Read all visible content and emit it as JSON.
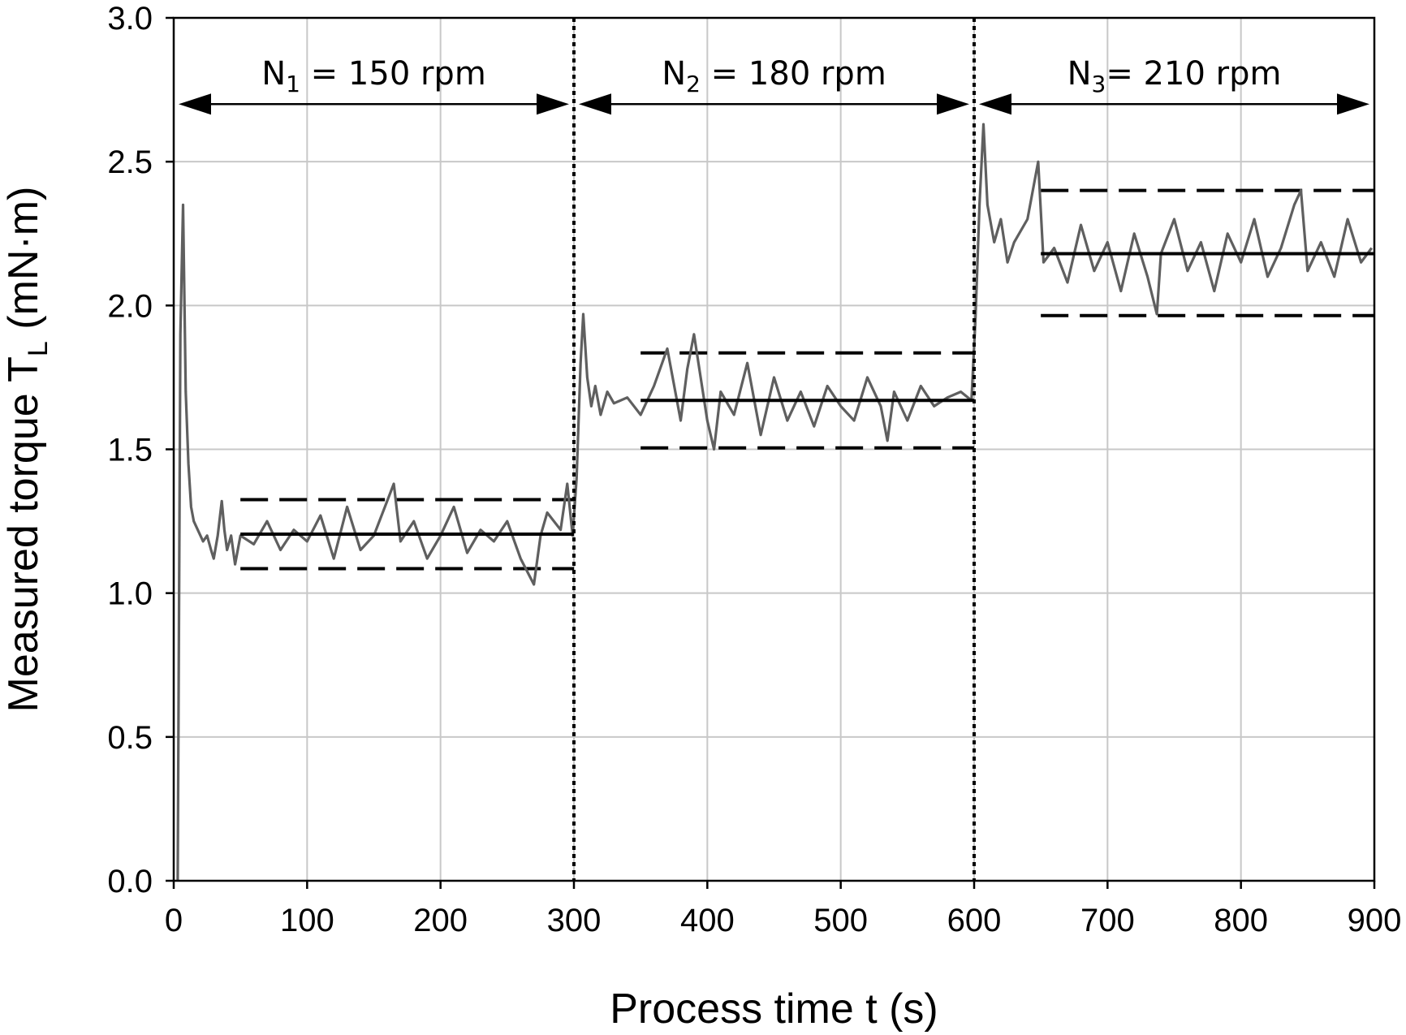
{
  "chart_data": {
    "type": "line",
    "title": "",
    "xlabel": "Process time t (s)",
    "ylabel_main": "Measured torque T",
    "ylabel_sub": "L",
    "ylabel_unit": " (mN·m)",
    "xlim": [
      0,
      900
    ],
    "ylim": [
      0,
      3.0
    ],
    "x_ticks": [
      0,
      100,
      200,
      300,
      400,
      500,
      600,
      700,
      800,
      900
    ],
    "y_ticks": [
      0.0,
      0.5,
      1.0,
      1.5,
      2.0,
      2.5,
      3.0
    ],
    "y_tick_labels": [
      "0.0",
      "0.5",
      "1.0",
      "1.5",
      "2.0",
      "2.5",
      "3.0"
    ],
    "grid": true,
    "series_color": "#5f5f5f",
    "boundaries": [
      300,
      600
    ],
    "regions": [
      {
        "sym": "N",
        "sub": "1",
        "rest": " = 150 rpm",
        "x_start": 0,
        "x_end": 300
      },
      {
        "sym": "N",
        "sub": "2",
        "rest": " = 180 rpm",
        "x_start": 300,
        "x_end": 600
      },
      {
        "sym": "N",
        "sub": "3",
        "rest": "= 210 rpm",
        "x_start": 600,
        "x_end": 900
      }
    ],
    "arrow_y": 2.7,
    "mean_lines": [
      {
        "x_start": 50,
        "x_end": 300,
        "value": 1.205
      },
      {
        "x_start": 350,
        "x_end": 600,
        "value": 1.67
      },
      {
        "x_start": 650,
        "x_end": 900,
        "value": 2.18
      }
    ],
    "bounds": [
      {
        "x_start": 50,
        "x_end": 300,
        "lower": 1.085,
        "upper": 1.325
      },
      {
        "x_start": 350,
        "x_end": 600,
        "lower": 1.505,
        "upper": 1.835
      },
      {
        "x_start": 650,
        "x_end": 900,
        "lower": 1.965,
        "upper": 2.4
      }
    ],
    "series": [
      {
        "x": [
          3,
          5,
          7,
          9,
          11,
          13,
          15,
          18,
          20,
          22,
          25,
          28,
          30,
          33,
          36,
          38,
          40,
          43,
          46,
          50,
          60,
          70,
          80,
          90,
          100,
          110,
          120,
          130,
          140,
          150,
          160,
          165,
          170,
          180,
          190,
          200,
          210,
          220,
          230,
          240,
          250,
          260,
          270,
          275,
          280,
          290,
          295,
          299,
          302,
          305,
          307,
          310,
          313,
          316,
          320,
          325,
          330,
          340,
          350,
          360,
          370,
          380,
          385,
          390,
          400,
          405,
          410,
          420,
          430,
          440,
          450,
          460,
          470,
          480,
          490,
          500,
          510,
          520,
          530,
          535,
          540,
          550,
          560,
          570,
          580,
          590,
          598,
          601,
          604,
          607,
          610,
          615,
          620,
          625,
          630,
          640,
          648,
          652,
          660,
          670,
          680,
          690,
          700,
          710,
          720,
          730,
          737,
          740,
          750,
          760,
          770,
          780,
          790,
          800,
          810,
          820,
          830,
          840,
          845,
          850,
          860,
          870,
          880,
          890,
          898
        ],
        "values": [
          0.0,
          1.9,
          2.35,
          1.7,
          1.45,
          1.3,
          1.25,
          1.22,
          1.2,
          1.18,
          1.2,
          1.15,
          1.12,
          1.2,
          1.32,
          1.22,
          1.15,
          1.2,
          1.1,
          1.2,
          1.17,
          1.25,
          1.15,
          1.22,
          1.18,
          1.27,
          1.12,
          1.3,
          1.15,
          1.2,
          1.32,
          1.38,
          1.18,
          1.25,
          1.12,
          1.2,
          1.3,
          1.14,
          1.22,
          1.18,
          1.25,
          1.12,
          1.03,
          1.2,
          1.28,
          1.22,
          1.38,
          1.2,
          1.4,
          1.8,
          1.97,
          1.75,
          1.65,
          1.72,
          1.62,
          1.7,
          1.66,
          1.68,
          1.62,
          1.72,
          1.85,
          1.6,
          1.78,
          1.9,
          1.6,
          1.5,
          1.7,
          1.62,
          1.8,
          1.55,
          1.75,
          1.6,
          1.7,
          1.58,
          1.72,
          1.65,
          1.6,
          1.75,
          1.65,
          1.53,
          1.7,
          1.6,
          1.72,
          1.65,
          1.68,
          1.7,
          1.67,
          1.95,
          2.35,
          2.63,
          2.35,
          2.22,
          2.3,
          2.15,
          2.22,
          2.3,
          2.5,
          2.15,
          2.2,
          2.08,
          2.28,
          2.12,
          2.22,
          2.05,
          2.25,
          2.1,
          1.97,
          2.18,
          2.3,
          2.12,
          2.22,
          2.05,
          2.25,
          2.15,
          2.3,
          2.1,
          2.2,
          2.35,
          2.4,
          2.12,
          2.22,
          2.1,
          2.3,
          2.15,
          2.2
        ]
      }
    ]
  }
}
